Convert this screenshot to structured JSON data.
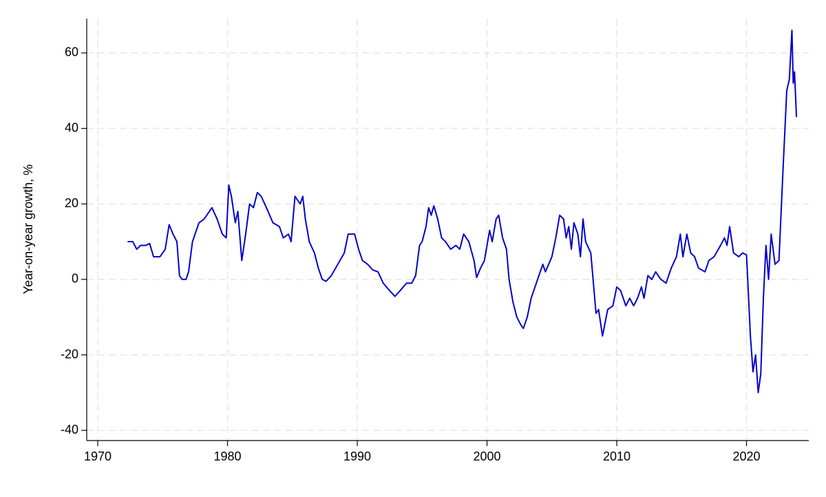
{
  "chart_data": {
    "type": "line",
    "y_label": "Year-on-year growth, %",
    "color": "#0000cc",
    "grid": true,
    "xlim": [
      1969.15,
      2024.8
    ],
    "ylim": [
      -42.7,
      69.1
    ],
    "xticks": [
      1970,
      1980,
      1990,
      2000,
      2010,
      2020
    ],
    "yticks": [
      -40,
      -20,
      0,
      20,
      40,
      60
    ],
    "x": [
      1972.3,
      1972.7,
      1973.0,
      1973.3,
      1973.7,
      1974.0,
      1974.3,
      1974.8,
      1975.0,
      1975.2,
      1975.5,
      1975.8,
      1976.1,
      1976.3,
      1976.5,
      1976.8,
      1977.0,
      1977.3,
      1977.8,
      1978.2,
      1978.8,
      1979.2,
      1979.6,
      1979.9,
      1980.1,
      1980.3,
      1980.6,
      1980.8,
      1981.1,
      1981.4,
      1981.7,
      1982.0,
      1982.3,
      1982.6,
      1983.0,
      1983.5,
      1984.0,
      1984.3,
      1984.7,
      1984.9,
      1985.2,
      1985.6,
      1985.8,
      1986.0,
      1986.3,
      1986.7,
      1987.0,
      1987.3,
      1987.6,
      1988.0,
      1988.5,
      1989.0,
      1989.3,
      1989.8,
      1990.1,
      1990.4,
      1990.8,
      1991.2,
      1991.6,
      1992.0,
      1992.5,
      1992.9,
      1993.3,
      1993.8,
      1994.2,
      1994.5,
      1994.8,
      1995.0,
      1995.3,
      1995.5,
      1995.7,
      1995.9,
      1996.2,
      1996.5,
      1996.8,
      1997.2,
      1997.6,
      1997.9,
      1998.2,
      1998.6,
      1999.0,
      1999.2,
      1999.5,
      1999.8,
      2000.2,
      2000.4,
      2000.7,
      2000.9,
      2001.2,
      2001.5,
      2001.7,
      2002.0,
      2002.3,
      2002.6,
      2002.8,
      2003.1,
      2003.4,
      2003.8,
      2004.0,
      2004.3,
      2004.5,
      2005.0,
      2005.3,
      2005.6,
      2005.9,
      2006.1,
      2006.3,
      2006.5,
      2006.7,
      2007.0,
      2007.2,
      2007.4,
      2007.6,
      2008.0,
      2008.4,
      2008.6,
      2008.9,
      2009.3,
      2009.7,
      2010.0,
      2010.3,
      2010.5,
      2010.7,
      2011.0,
      2011.3,
      2011.6,
      2011.9,
      2012.1,
      2012.4,
      2012.7,
      2013.0,
      2013.4,
      2013.8,
      2014.2,
      2014.6,
      2014.9,
      2015.1,
      2015.4,
      2015.7,
      2016.0,
      2016.3,
      2016.8,
      2017.1,
      2017.5,
      2018.0,
      2018.3,
      2018.5,
      2018.7,
      2019.0,
      2019.4,
      2019.7,
      2020.0,
      2020.3,
      2020.5,
      2020.7,
      2020.9,
      2021.1,
      2021.3,
      2021.5,
      2021.7,
      2021.9,
      2022.2,
      2022.5,
      2022.8,
      2023.1,
      2023.3,
      2023.5,
      2023.6,
      2023.7,
      2023.85
    ],
    "values": [
      10,
      10,
      8,
      9,
      9,
      9.5,
      6,
      6,
      7,
      8,
      14.5,
      12,
      10,
      1,
      0,
      0,
      2,
      10,
      15,
      16,
      19,
      16,
      12,
      11,
      25,
      22,
      15,
      18,
      5,
      12,
      20,
      19,
      23,
      22,
      19,
      15,
      14,
      11,
      12,
      10,
      22,
      20,
      22,
      16,
      10,
      7,
      3,
      0,
      -0.5,
      1,
      4,
      7,
      12,
      12,
      8,
      5,
      4,
      2.5,
      2,
      -1,
      -3,
      -4.5,
      -3,
      -1,
      -1,
      1,
      9,
      10,
      14,
      19,
      17,
      19.5,
      16,
      11,
      10,
      8,
      9,
      8,
      12,
      10,
      5,
      0.5,
      3,
      5,
      13,
      10,
      16,
      17,
      11,
      8,
      0,
      -6,
      -10,
      -12,
      -13,
      -10,
      -5,
      -1,
      1,
      4,
      2,
      6,
      11,
      17,
      16,
      11,
      14,
      8,
      15,
      12,
      6,
      16,
      10,
      7,
      -9,
      -8,
      -15,
      -8,
      -7,
      -2,
      -3,
      -5,
      -7,
      -5,
      -7,
      -5,
      -2,
      -5,
      1,
      0,
      2,
      0,
      -1,
      3,
      6,
      12,
      6,
      12,
      7,
      6,
      3,
      2,
      5,
      6,
      9,
      11,
      9,
      14,
      7,
      6,
      7,
      6.5,
      -15,
      -24.5,
      -20,
      -30,
      -25,
      -5,
      9,
      0,
      12,
      4,
      5,
      28,
      50,
      53,
      66,
      52,
      55,
      43
    ]
  }
}
